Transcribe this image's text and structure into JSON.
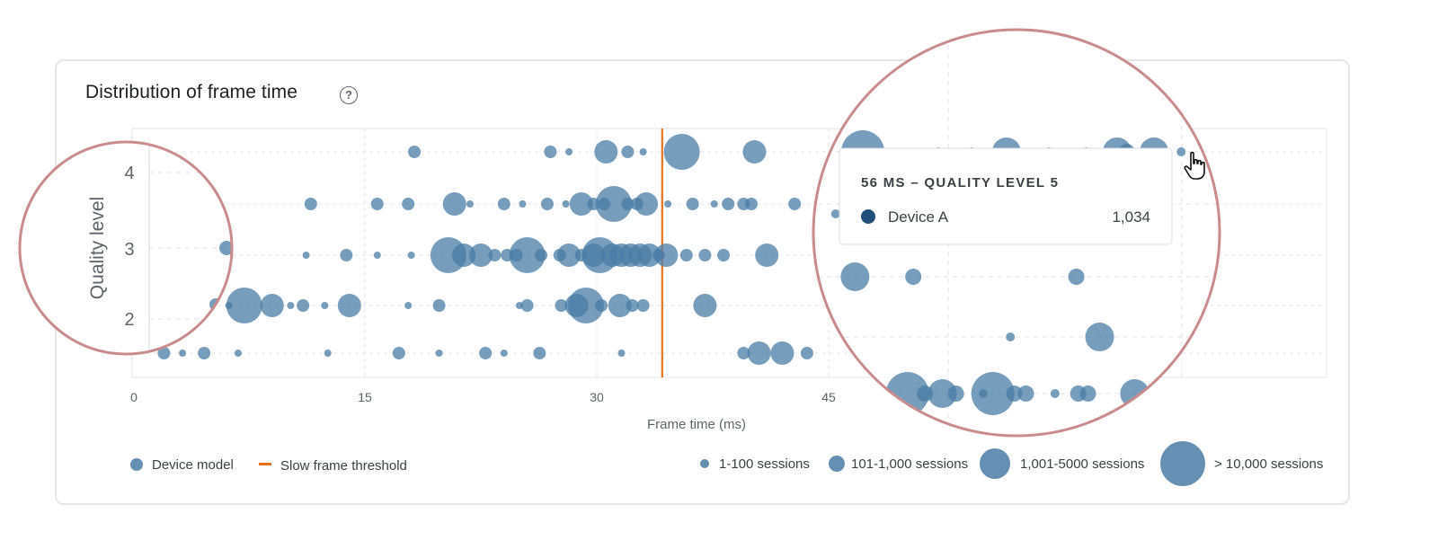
{
  "card": {
    "title": "Distribution of frame time",
    "help_icon": "help-circle-icon",
    "help_glyph": "?"
  },
  "colors": {
    "bubble": "#4a7ca6",
    "bubble_opacity": 0.75,
    "threshold": "#e8711a",
    "grid": "#e3e6ea",
    "zoom_border": "#c98b8b",
    "tooltip_dot": "#1f4f7a"
  },
  "chart_data": {
    "type": "scatter",
    "subtype": "bubble",
    "xlabel": "Frame time (ms)",
    "ylabel": "Quality level",
    "xlim": [
      0,
      75
    ],
    "ylim": [
      0.5,
      4.3
    ],
    "x_ticks": [
      0,
      15,
      30,
      45
    ],
    "y_ticks": [
      1,
      2,
      3,
      4,
      5
    ],
    "grid": true,
    "threshold": {
      "x": 34,
      "label": "Slow frame threshold"
    },
    "legend": {
      "series_label": "Device model",
      "threshold_label": "Slow frame threshold",
      "size_labels": [
        "1-100 sessions",
        "101-1,000 sessions",
        "1,001-5000 sessions",
        "> 10,000 sessions"
      ]
    },
    "size_classes": [
      1,
      2,
      3,
      4
    ],
    "series": [
      {
        "name": "Device model",
        "points": [
          {
            "x": 18.2,
            "y": 4.3,
            "s": 2
          },
          {
            "x": 27.0,
            "y": 4.3,
            "s": 2
          },
          {
            "x": 28.2,
            "y": 4.3,
            "s": 1
          },
          {
            "x": 30.6,
            "y": 4.3,
            "s": 3
          },
          {
            "x": 32.0,
            "y": 4.3,
            "s": 2
          },
          {
            "x": 33.0,
            "y": 4.3,
            "s": 1
          },
          {
            "x": 35.5,
            "y": 4.3,
            "s": 4
          },
          {
            "x": 40.2,
            "y": 4.3,
            "s": 3
          },
          {
            "x": 11.5,
            "y": 3.6,
            "s": 2
          },
          {
            "x": 15.8,
            "y": 3.6,
            "s": 2
          },
          {
            "x": 17.8,
            "y": 3.6,
            "s": 2
          },
          {
            "x": 20.8,
            "y": 3.6,
            "s": 3
          },
          {
            "x": 21.8,
            "y": 3.6,
            "s": 1
          },
          {
            "x": 24.0,
            "y": 3.6,
            "s": 2
          },
          {
            "x": 25.2,
            "y": 3.6,
            "s": 1
          },
          {
            "x": 26.8,
            "y": 3.6,
            "s": 2
          },
          {
            "x": 28.0,
            "y": 3.6,
            "s": 1
          },
          {
            "x": 29.0,
            "y": 3.6,
            "s": 3
          },
          {
            "x": 29.8,
            "y": 3.6,
            "s": 2
          },
          {
            "x": 30.5,
            "y": 3.6,
            "s": 2
          },
          {
            "x": 31.1,
            "y": 3.6,
            "s": 4
          },
          {
            "x": 32.0,
            "y": 3.6,
            "s": 2
          },
          {
            "x": 32.6,
            "y": 3.6,
            "s": 2
          },
          {
            "x": 33.2,
            "y": 3.6,
            "s": 3
          },
          {
            "x": 34.6,
            "y": 3.6,
            "s": 1
          },
          {
            "x": 36.2,
            "y": 3.6,
            "s": 2
          },
          {
            "x": 37.6,
            "y": 3.6,
            "s": 1
          },
          {
            "x": 38.5,
            "y": 3.6,
            "s": 2
          },
          {
            "x": 39.5,
            "y": 3.6,
            "s": 2
          },
          {
            "x": 40.0,
            "y": 3.6,
            "s": 2
          },
          {
            "x": 42.8,
            "y": 3.6,
            "s": 2
          },
          {
            "x": 5.7,
            "y": 2.9,
            "s": 2
          },
          {
            "x": 11.2,
            "y": 2.9,
            "s": 1
          },
          {
            "x": 13.8,
            "y": 2.9,
            "s": 2
          },
          {
            "x": 15.8,
            "y": 2.9,
            "s": 1
          },
          {
            "x": 18.0,
            "y": 2.9,
            "s": 1
          },
          {
            "x": 20.4,
            "y": 2.9,
            "s": 4
          },
          {
            "x": 21.4,
            "y": 2.9,
            "s": 3
          },
          {
            "x": 22.5,
            "y": 2.9,
            "s": 3
          },
          {
            "x": 23.4,
            "y": 2.9,
            "s": 2
          },
          {
            "x": 24.2,
            "y": 2.9,
            "s": 2
          },
          {
            "x": 24.8,
            "y": 2.9,
            "s": 2
          },
          {
            "x": 25.5,
            "y": 2.9,
            "s": 4
          },
          {
            "x": 26.4,
            "y": 2.9,
            "s": 2
          },
          {
            "x": 27.6,
            "y": 2.9,
            "s": 2
          },
          {
            "x": 28.2,
            "y": 2.9,
            "s": 3
          },
          {
            "x": 29.0,
            "y": 2.9,
            "s": 2
          },
          {
            "x": 29.8,
            "y": 2.9,
            "s": 3
          },
          {
            "x": 30.2,
            "y": 2.9,
            "s": 4
          },
          {
            "x": 31.0,
            "y": 2.9,
            "s": 3
          },
          {
            "x": 31.6,
            "y": 2.9,
            "s": 3
          },
          {
            "x": 32.2,
            "y": 2.9,
            "s": 3
          },
          {
            "x": 32.8,
            "y": 2.9,
            "s": 3
          },
          {
            "x": 33.4,
            "y": 2.9,
            "s": 3
          },
          {
            "x": 34.0,
            "y": 2.9,
            "s": 2
          },
          {
            "x": 34.5,
            "y": 2.9,
            "s": 3
          },
          {
            "x": 35.8,
            "y": 2.9,
            "s": 2
          },
          {
            "x": 37.0,
            "y": 2.9,
            "s": 2
          },
          {
            "x": 38.2,
            "y": 2.9,
            "s": 2
          },
          {
            "x": 41.0,
            "y": 2.9,
            "s": 3
          },
          {
            "x": 6.2,
            "y": 2.2,
            "s": 1
          },
          {
            "x": 7.2,
            "y": 2.2,
            "s": 4
          },
          {
            "x": 9.0,
            "y": 2.2,
            "s": 3
          },
          {
            "x": 10.2,
            "y": 2.2,
            "s": 1
          },
          {
            "x": 11.0,
            "y": 2.2,
            "s": 2
          },
          {
            "x": 12.4,
            "y": 2.2,
            "s": 1
          },
          {
            "x": 14.0,
            "y": 2.2,
            "s": 3
          },
          {
            "x": 17.8,
            "y": 2.2,
            "s": 1
          },
          {
            "x": 19.8,
            "y": 2.2,
            "s": 2
          },
          {
            "x": 25.0,
            "y": 2.2,
            "s": 1
          },
          {
            "x": 25.5,
            "y": 2.2,
            "s": 2
          },
          {
            "x": 27.7,
            "y": 2.2,
            "s": 2
          },
          {
            "x": 28.7,
            "y": 2.2,
            "s": 3
          },
          {
            "x": 29.3,
            "y": 2.2,
            "s": 4
          },
          {
            "x": 30.3,
            "y": 2.2,
            "s": 2
          },
          {
            "x": 31.5,
            "y": 2.2,
            "s": 3
          },
          {
            "x": 32.3,
            "y": 2.2,
            "s": 2
          },
          {
            "x": 33.0,
            "y": 2.2,
            "s": 2
          },
          {
            "x": 37.0,
            "y": 2.2,
            "s": 3
          },
          {
            "x": 2.0,
            "y": 1.5,
            "s": 2
          },
          {
            "x": 3.2,
            "y": 1.5,
            "s": 1
          },
          {
            "x": 4.6,
            "y": 1.5,
            "s": 2
          },
          {
            "x": 6.8,
            "y": 1.5,
            "s": 1
          },
          {
            "x": 12.6,
            "y": 1.5,
            "s": 1
          },
          {
            "x": 17.2,
            "y": 1.5,
            "s": 2
          },
          {
            "x": 19.8,
            "y": 1.5,
            "s": 1
          },
          {
            "x": 22.8,
            "y": 1.5,
            "s": 2
          },
          {
            "x": 24.0,
            "y": 1.5,
            "s": 1
          },
          {
            "x": 26.3,
            "y": 1.5,
            "s": 2
          },
          {
            "x": 31.6,
            "y": 1.5,
            "s": 1
          },
          {
            "x": 39.5,
            "y": 1.5,
            "s": 2
          },
          {
            "x": 40.5,
            "y": 1.5,
            "s": 3
          },
          {
            "x": 42.0,
            "y": 1.5,
            "s": 3
          },
          {
            "x": 43.6,
            "y": 1.5,
            "s": 2
          }
        ]
      }
    ]
  },
  "zoom_left": {
    "ylabel": "Quality level",
    "y_ticks": [
      "4",
      "3",
      "2"
    ]
  },
  "zoom_right": {
    "points": [
      {
        "x": 45.6,
        "y": 4.3,
        "s": 4
      },
      {
        "x": 49.5,
        "y": 4.3,
        "s": 1
      },
      {
        "x": 51.2,
        "y": 4.3,
        "s": 1
      },
      {
        "x": 53.0,
        "y": 4.3,
        "s": 3
      },
      {
        "x": 55.2,
        "y": 4.3,
        "s": 1
      },
      {
        "x": 57.1,
        "y": 4.3,
        "s": 1
      },
      {
        "x": 58.7,
        "y": 4.3,
        "s": 3
      },
      {
        "x": 59.2,
        "y": 4.3,
        "s": 2
      },
      {
        "x": 60.6,
        "y": 4.3,
        "s": 3
      },
      {
        "x": 62.0,
        "y": 4.3,
        "s": 1
      },
      {
        "x": 44.2,
        "y": 3.6,
        "s": 1
      },
      {
        "x": 45.0,
        "y": 3.6,
        "s": 2
      },
      {
        "x": 45.2,
        "y": 2.9,
        "s": 3
      },
      {
        "x": 48.2,
        "y": 2.9,
        "s": 2
      },
      {
        "x": 56.6,
        "y": 2.9,
        "s": 2
      },
      {
        "x": 53.2,
        "y": 2.5,
        "s": 1
      },
      {
        "x": 57.8,
        "y": 2.5,
        "s": 3
      },
      {
        "x": 46.3,
        "y": 2.1,
        "s": 2
      },
      {
        "x": 47.9,
        "y": 2.1,
        "s": 4
      },
      {
        "x": 48.8,
        "y": 2.1,
        "s": 2
      },
      {
        "x": 49.7,
        "y": 2.1,
        "s": 3
      },
      {
        "x": 50.4,
        "y": 2.1,
        "s": 2
      },
      {
        "x": 51.8,
        "y": 2.1,
        "s": 1
      },
      {
        "x": 52.3,
        "y": 2.1,
        "s": 4
      },
      {
        "x": 53.4,
        "y": 2.1,
        "s": 2
      },
      {
        "x": 54.0,
        "y": 2.1,
        "s": 2
      },
      {
        "x": 55.5,
        "y": 2.1,
        "s": 1
      },
      {
        "x": 56.7,
        "y": 2.1,
        "s": 2
      },
      {
        "x": 57.2,
        "y": 2.1,
        "s": 2
      },
      {
        "x": 59.6,
        "y": 2.1,
        "s": 3
      }
    ]
  },
  "tooltip": {
    "title": "56 MS – QUALITY LEVEL 5",
    "device": "Device A",
    "value": "1,034"
  },
  "cursor_icon": "hand-pointer-icon"
}
